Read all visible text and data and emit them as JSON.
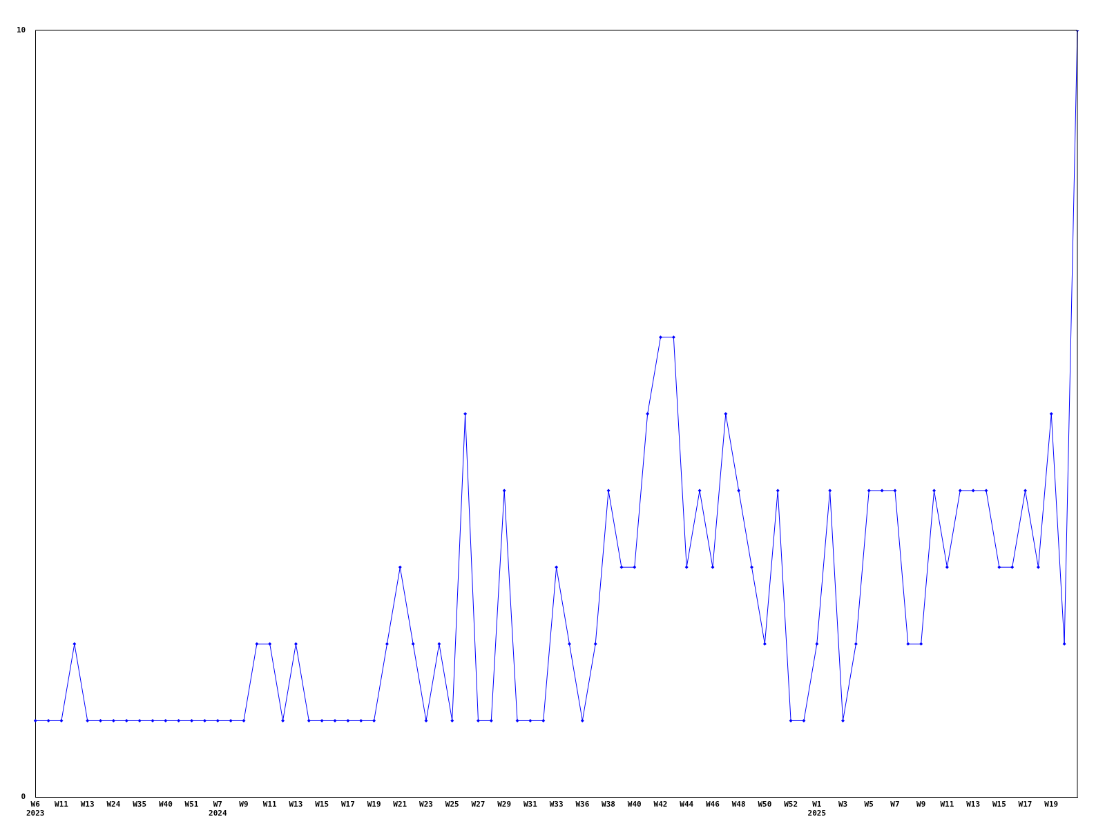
{
  "chart_data": {
    "type": "line",
    "categories": [
      "W6\n2023",
      null,
      "W11",
      null,
      "W13",
      null,
      "W24",
      null,
      "W35",
      null,
      "W40",
      null,
      "W51",
      null,
      "W7\n2024",
      null,
      "W9",
      null,
      "W11",
      null,
      "W13",
      null,
      "W15",
      null,
      "W17",
      null,
      "W19",
      null,
      "W21",
      null,
      "W23",
      null,
      "W25",
      null,
      "W27",
      null,
      "W29",
      null,
      "W31",
      null,
      "W33",
      null,
      "W36",
      null,
      "W38",
      null,
      "W40",
      null,
      "W42",
      null,
      "W44",
      null,
      "W46",
      null,
      "W48",
      null,
      "W50",
      null,
      "W52",
      null,
      "W1\n2025",
      null,
      "W3",
      null,
      "W5",
      null,
      "W7",
      null,
      "W9",
      null,
      "W11",
      null,
      "W13",
      null,
      "W15",
      null,
      "W17",
      null,
      "W19",
      null,
      null
    ],
    "series": [
      {
        "color": "#0000ff",
        "values": [
          1,
          1,
          1,
          2,
          1,
          1,
          1,
          1,
          1,
          1,
          1,
          1,
          1,
          1,
          1,
          1,
          1,
          2,
          2,
          1,
          2,
          1,
          1,
          1,
          1,
          1,
          1,
          2,
          3,
          2,
          1,
          2,
          1,
          5,
          1,
          1,
          4,
          1,
          1,
          1,
          3,
          2,
          1,
          2,
          4,
          3,
          3,
          5,
          6,
          6,
          3,
          4,
          3,
          5,
          4,
          3,
          2,
          4,
          1,
          1,
          2,
          4,
          1,
          2,
          4,
          4,
          4,
          2,
          2,
          4,
          3,
          4,
          4,
          4,
          3,
          3,
          4,
          3,
          5,
          2,
          10
        ]
      }
    ],
    "ylim": [
      0,
      10
    ],
    "yticks": [
      0,
      10
    ],
    "grid": false,
    "legend": false,
    "marker": "diamond",
    "line_style": "solid"
  }
}
